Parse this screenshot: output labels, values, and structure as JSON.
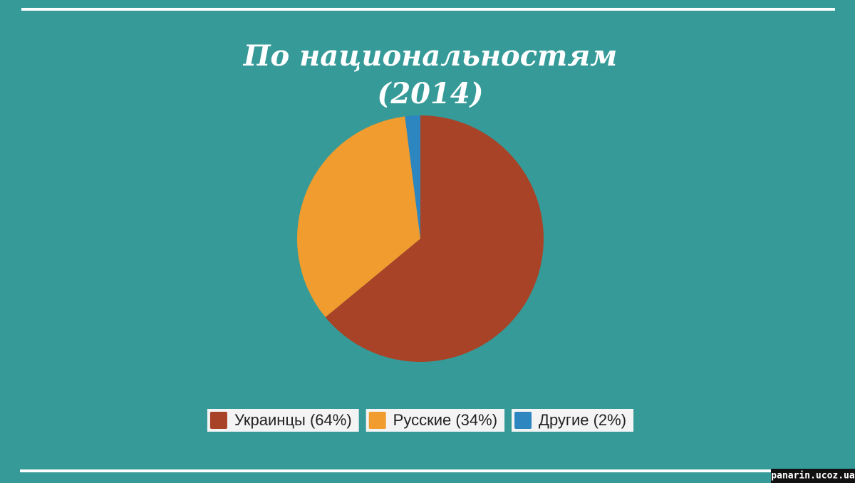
{
  "chart_data": {
    "type": "pie",
    "title": "По национальностям",
    "subtitle": "(2014)",
    "categories": [
      "Украинцы (64%)",
      "Русские (34%)",
      "Другие (2%)"
    ],
    "values": [
      64,
      34,
      2
    ],
    "colors": [
      "#a84327",
      "#f09c2e",
      "#2e86c1"
    ],
    "legend": "bottom",
    "watermark": "panarin.ucoz.ua"
  }
}
